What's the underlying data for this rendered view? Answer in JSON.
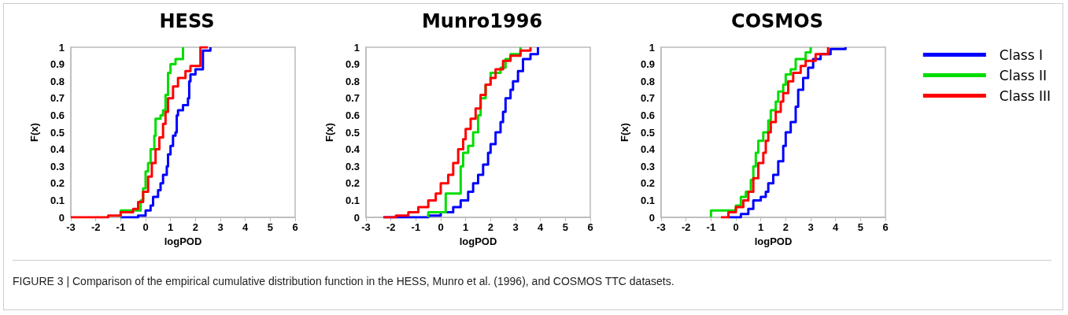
{
  "chart_data": [
    {
      "type": "step",
      "title": "HESS",
      "xlabel": "logPOD",
      "ylabel": "F(x)",
      "xlim": [
        -3,
        6
      ],
      "xticks": [
        -3,
        -2,
        -1,
        0,
        1,
        2,
        3,
        4,
        5,
        6
      ],
      "ylim": [
        0,
        1
      ],
      "yticks": [
        0,
        0.1,
        0.2,
        0.3,
        0.4,
        0.5,
        0.6,
        0.7,
        0.8,
        0.9,
        1
      ],
      "grid": false,
      "legend": false,
      "annotations": [
        "FIGURE 3 | Comparison of the empirical cumulative distribution function in the HESS, Munro et al. (1996), and COSMOS TTC datasets."
      ],
      "series": [
        {
          "color": "#0000ff",
          "x": [
            -1.0,
            -0.3,
            0.0,
            0.2,
            0.3,
            0.5,
            0.6,
            0.7,
            0.85,
            0.9,
            1.0,
            1.1,
            1.2,
            1.25,
            1.3,
            1.5,
            1.7,
            1.75,
            1.8,
            2.0,
            2.3,
            2.3,
            2.6
          ],
          "values": [
            0,
            0.01,
            0.04,
            0.07,
            0.12,
            0.16,
            0.2,
            0.25,
            0.3,
            0.37,
            0.42,
            0.48,
            0.5,
            0.6,
            0.63,
            0.66,
            0.7,
            0.8,
            0.84,
            0.87,
            0.9,
            0.98,
            1.0
          ]
        },
        {
          "color": "#00dd00",
          "x": [
            -1.0,
            -1.0,
            -0.3,
            -0.2,
            -0.1,
            0.0,
            0.1,
            0.2,
            0.35,
            0.4,
            0.6,
            0.7,
            0.8,
            0.9,
            1.0,
            1.2,
            1.5,
            1.5
          ],
          "values": [
            0,
            0.04,
            0.04,
            0.1,
            0.17,
            0.27,
            0.32,
            0.4,
            0.48,
            0.58,
            0.6,
            0.63,
            0.72,
            0.85,
            0.9,
            0.93,
            0.96,
            1.0
          ]
        },
        {
          "color": "#ff0000",
          "x": [
            -3,
            -2,
            -1.5,
            -1,
            -0.5,
            -0.3,
            -0.1,
            0.1,
            0.25,
            0.4,
            0.55,
            0.7,
            0.8,
            0.9,
            1.1,
            1.3,
            1.6,
            1.8,
            2.2,
            2.2,
            2.5
          ],
          "values": [
            0,
            0,
            0.01,
            0.03,
            0.05,
            0.09,
            0.15,
            0.24,
            0.32,
            0.4,
            0.47,
            0.55,
            0.62,
            0.7,
            0.77,
            0.82,
            0.86,
            0.89,
            0.9,
            1.0,
            1.0
          ]
        }
      ]
    },
    {
      "type": "step",
      "title": "Munro1996",
      "xlabel": "logPOD",
      "ylabel": "F(x)",
      "xlim": [
        -3,
        6
      ],
      "xticks": [
        -3,
        -2,
        -1,
        0,
        1,
        2,
        3,
        4,
        5,
        6
      ],
      "ylim": [
        0,
        1
      ],
      "yticks": [
        0,
        0.1,
        0.2,
        0.3,
        0.4,
        0.5,
        0.6,
        0.7,
        0.8,
        0.9,
        1
      ],
      "grid": false,
      "legend": false,
      "series": [
        {
          "color": "#0000ff",
          "x": [
            -2.3,
            -0.5,
            0.0,
            0.5,
            0.8,
            1.1,
            1.3,
            1.5,
            1.7,
            1.9,
            2.0,
            2.2,
            2.4,
            2.5,
            2.6,
            2.8,
            2.9,
            3.1,
            3.3,
            3.6,
            3.9
          ],
          "values": [
            0,
            0.01,
            0.03,
            0.06,
            0.1,
            0.15,
            0.2,
            0.25,
            0.31,
            0.38,
            0.43,
            0.5,
            0.56,
            0.62,
            0.7,
            0.75,
            0.8,
            0.86,
            0.93,
            0.96,
            1.0
          ]
        },
        {
          "color": "#00dd00",
          "x": [
            -0.5,
            -0.5,
            0.2,
            0.2,
            0.7,
            0.8,
            0.9,
            1.1,
            1.3,
            1.5,
            1.6,
            1.8,
            2.0,
            2.4,
            2.6,
            2.8,
            3.2
          ],
          "values": [
            0,
            0.03,
            0.03,
            0.14,
            0.14,
            0.3,
            0.38,
            0.42,
            0.5,
            0.6,
            0.7,
            0.78,
            0.85,
            0.88,
            0.93,
            0.96,
            1.0
          ]
        },
        {
          "color": "#ff0000",
          "x": [
            -2.3,
            -1.8,
            -1.3,
            -0.9,
            -0.5,
            -0.2,
            0.0,
            0.3,
            0.5,
            0.7,
            0.9,
            1.0,
            1.2,
            1.4,
            1.6,
            1.8,
            2.0,
            2.2,
            2.5,
            2.8,
            3.2,
            3.6
          ],
          "values": [
            0,
            0.01,
            0.03,
            0.06,
            0.1,
            0.14,
            0.2,
            0.25,
            0.32,
            0.4,
            0.46,
            0.52,
            0.58,
            0.64,
            0.72,
            0.78,
            0.82,
            0.87,
            0.92,
            0.95,
            0.98,
            1.0
          ]
        }
      ]
    },
    {
      "type": "step",
      "title": "COSMOS",
      "xlabel": "logPOD",
      "ylabel": "F(x)",
      "xlim": [
        -3,
        6
      ],
      "xticks": [
        -3,
        -2,
        -1,
        0,
        1,
        2,
        3,
        4,
        5,
        6
      ],
      "ylim": [
        0,
        1
      ],
      "yticks": [
        0,
        0.1,
        0.2,
        0.3,
        0.4,
        0.5,
        0.6,
        0.7,
        0.8,
        0.9,
        1
      ],
      "grid": false,
      "legend": "right",
      "series": [
        {
          "name": "Class I",
          "color": "#0000ff",
          "x": [
            -0.3,
            0.2,
            0.5,
            0.7,
            1.0,
            1.2,
            1.3,
            1.5,
            1.7,
            1.9,
            2.0,
            2.2,
            2.4,
            2.5,
            2.7,
            2.9,
            3.1,
            3.4,
            3.8,
            4.4
          ],
          "values": [
            0,
            0.02,
            0.05,
            0.1,
            0.12,
            0.15,
            0.2,
            0.25,
            0.33,
            0.42,
            0.5,
            0.56,
            0.65,
            0.75,
            0.82,
            0.88,
            0.93,
            0.96,
            0.99,
            1.0
          ]
        },
        {
          "name": "Class II",
          "color": "#00dd00",
          "x": [
            -1.0,
            -1.0,
            -0.6,
            0.0,
            0.2,
            0.4,
            0.6,
            0.7,
            0.8,
            0.9,
            1.1,
            1.3,
            1.4,
            1.6,
            1.7,
            1.9,
            2.0,
            2.2,
            2.4,
            2.8,
            3.0
          ],
          "values": [
            0,
            0.04,
            0.04,
            0.07,
            0.12,
            0.15,
            0.22,
            0.3,
            0.38,
            0.45,
            0.5,
            0.57,
            0.63,
            0.68,
            0.74,
            0.78,
            0.84,
            0.87,
            0.93,
            0.97,
            1.0
          ]
        },
        {
          "name": "Class III",
          "color": "#ff0000",
          "x": [
            -0.6,
            -0.3,
            0.0,
            0.3,
            0.5,
            0.7,
            0.9,
            1.1,
            1.2,
            1.3,
            1.4,
            1.6,
            1.8,
            1.9,
            2.1,
            2.3,
            2.6,
            2.8,
            3.2,
            3.7
          ],
          "values": [
            0,
            0.03,
            0.06,
            0.1,
            0.15,
            0.23,
            0.32,
            0.38,
            0.45,
            0.5,
            0.56,
            0.62,
            0.68,
            0.73,
            0.8,
            0.85,
            0.89,
            0.92,
            0.96,
            1.0
          ]
        }
      ]
    }
  ]
}
